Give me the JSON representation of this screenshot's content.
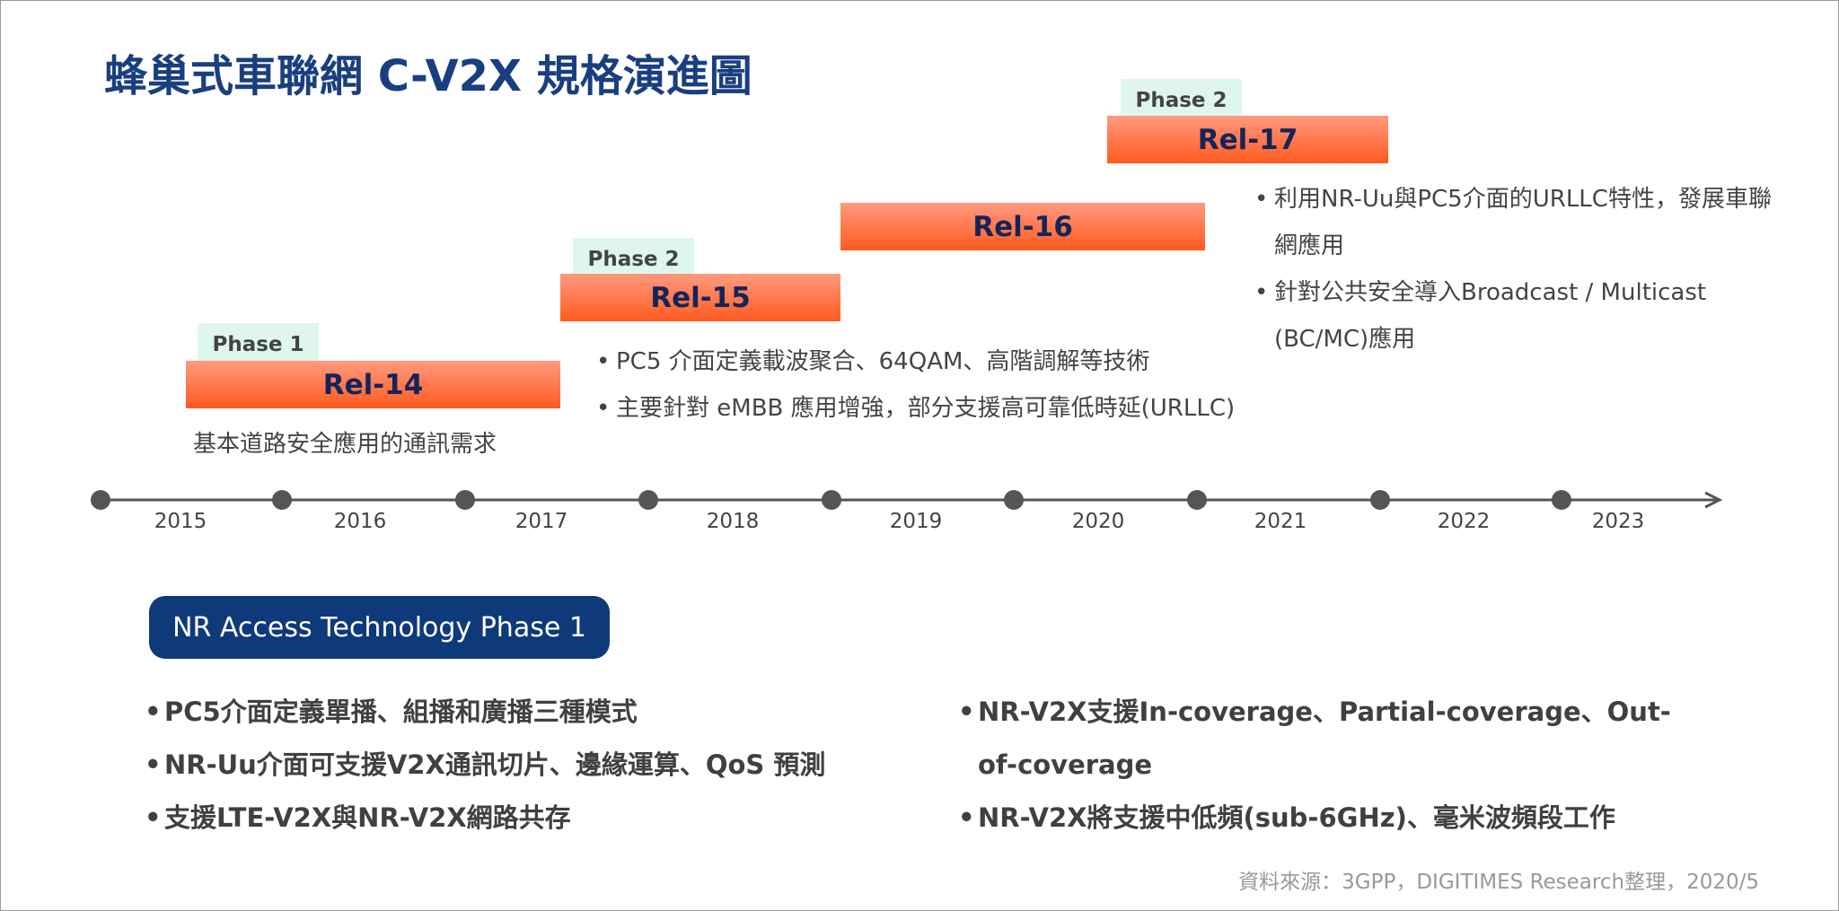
{
  "title": "蜂巢式車聯網 C-V2X 規格演進圖",
  "releases": [
    {
      "name": "Rel-14",
      "phase": "Phase 1",
      "notes": [
        "基本道路安全應用的通訊需求"
      ]
    },
    {
      "name": "Rel-15",
      "phase": "Phase 2",
      "notes": [
        "PC5 介面定義載波聚合、64QAM、高階調解等技術",
        "主要針對 eMBB 應用增強，部分支援高可靠低時延(URLLC)"
      ]
    },
    {
      "name": "Rel-16"
    },
    {
      "name": "Rel-17",
      "phase": "Phase 2",
      "notes": [
        "利用NR-Uu與PC5介面的URLLC特性，發展車聯網應用",
        "針對公共安全導入Broadcast / Multicast (BC/MC)應用"
      ]
    }
  ],
  "timeline": {
    "years": [
      "2015",
      "2016",
      "2017",
      "2018",
      "2019",
      "2020",
      "2021",
      "2022",
      "2023"
    ]
  },
  "nr_access": {
    "title": "NR Access Technology Phase 1",
    "left": [
      "PC5介面定義單播、組播和廣播三種模式",
      "NR-Uu介面可支援V2X通訊切片、邊緣運算、QoS 預測",
      "支援LTE-V2X與NR-V2X網路共存"
    ],
    "right": [
      "NR-V2X支援In-coverage、Partial-coverage、Out-of-coverage",
      "NR-V2X將支援中低頻(sub-6GHz)、毫米波頻段工作"
    ]
  },
  "source": "資料來源：3GPP，DIGITIMES Research整理，2020/5"
}
